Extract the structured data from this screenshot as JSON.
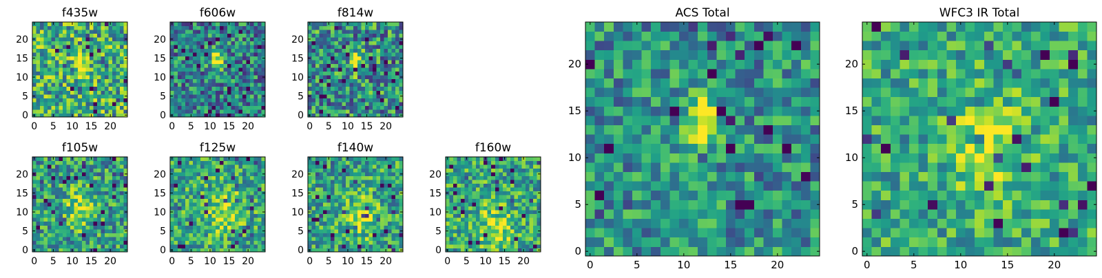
{
  "chart_data": [
    {
      "type": "heatmap",
      "title": "f435w",
      "xlabel": "",
      "ylabel": "",
      "xlim": [
        0,
        25
      ],
      "ylim": [
        0,
        25
      ],
      "xticks": [
        0,
        5,
        10,
        15,
        20
      ],
      "xtick_labels": [
        "0",
        "5",
        "10",
        "15",
        "20"
      ],
      "yticks": [
        0,
        5,
        10,
        15,
        20
      ],
      "ytick_labels": [
        "0",
        "5",
        "10",
        "15",
        "20"
      ],
      "colormap": "viridis",
      "source_center": [
        12,
        14
      ],
      "source_size": [
        1.2,
        2.2
      ],
      "source_strength": 0.45,
      "noise_level": 0.35,
      "base_level": 0.62,
      "seed": 435
    },
    {
      "type": "heatmap",
      "title": "f606w",
      "xlabel": "",
      "ylabel": "",
      "xlim": [
        0,
        25
      ],
      "ylim": [
        0,
        25
      ],
      "xticks": [
        0,
        5,
        10,
        15,
        20
      ],
      "xtick_labels": [
        "0",
        "5",
        "10",
        "15",
        "20"
      ],
      "yticks": [
        0,
        5,
        10,
        15,
        20
      ],
      "ytick_labels": [
        "0",
        "5",
        "10",
        "15",
        "20"
      ],
      "colormap": "viridis",
      "source_center": [
        12,
        14
      ],
      "source_size": [
        1.2,
        1.8
      ],
      "source_strength": 0.65,
      "noise_level": 0.32,
      "base_level": 0.45,
      "seed": 606
    },
    {
      "type": "heatmap",
      "title": "f814w",
      "xlabel": "",
      "ylabel": "",
      "xlim": [
        0,
        25
      ],
      "ylim": [
        0,
        25
      ],
      "xticks": [
        0,
        5,
        10,
        15,
        20
      ],
      "xtick_labels": [
        "0",
        "5",
        "10",
        "15",
        "20"
      ],
      "yticks": [
        0,
        5,
        10,
        15,
        20
      ],
      "ytick_labels": [
        "0",
        "5",
        "10",
        "15",
        "20"
      ],
      "colormap": "viridis",
      "source_center": [
        12,
        14
      ],
      "source_size": [
        1.2,
        2.0
      ],
      "source_strength": 0.5,
      "noise_level": 0.35,
      "base_level": 0.5,
      "seed": 814
    },
    {
      "type": "heatmap",
      "title": "f105w",
      "xlabel": "",
      "ylabel": "",
      "xlim": [
        0,
        25
      ],
      "ylim": [
        0,
        25
      ],
      "xticks": [
        0,
        5,
        10,
        15,
        20
      ],
      "xtick_labels": [
        "0",
        "5",
        "10",
        "15",
        "20"
      ],
      "yticks": [
        0,
        5,
        10,
        15,
        20
      ],
      "ytick_labels": [
        "0",
        "5",
        "10",
        "15",
        "20"
      ],
      "colormap": "viridis",
      "source_center": [
        12,
        11
      ],
      "source_size": [
        2.5,
        3.5
      ],
      "source_strength": 0.35,
      "noise_level": 0.3,
      "base_level": 0.55,
      "seed": 105
    },
    {
      "type": "heatmap",
      "title": "f125w",
      "xlabel": "",
      "ylabel": "",
      "xlim": [
        0,
        25
      ],
      "ylim": [
        0,
        25
      ],
      "xticks": [
        0,
        5,
        10,
        15,
        20
      ],
      "xtick_labels": [
        "0",
        "5",
        "10",
        "15",
        "20"
      ],
      "yticks": [
        0,
        5,
        10,
        15,
        20
      ],
      "ytick_labels": [
        "0",
        "5",
        "10",
        "15",
        "20"
      ],
      "colormap": "viridis",
      "source_center": [
        14,
        10
      ],
      "source_size": [
        3,
        4
      ],
      "source_strength": 0.3,
      "noise_level": 0.28,
      "base_level": 0.6,
      "seed": 125
    },
    {
      "type": "heatmap",
      "title": "f140w",
      "xlabel": "",
      "ylabel": "",
      "xlim": [
        0,
        25
      ],
      "ylim": [
        0,
        25
      ],
      "xticks": [
        0,
        5,
        10,
        15,
        20
      ],
      "xtick_labels": [
        "0",
        "5",
        "10",
        "15",
        "20"
      ],
      "yticks": [
        0,
        5,
        10,
        15,
        20
      ],
      "ytick_labels": [
        "0",
        "5",
        "10",
        "15",
        "20"
      ],
      "colormap": "viridis",
      "source_center": [
        14,
        9
      ],
      "source_size": [
        3,
        4
      ],
      "source_strength": 0.3,
      "noise_level": 0.28,
      "base_level": 0.58,
      "seed": 140
    },
    {
      "type": "heatmap",
      "title": "f160w",
      "xlabel": "",
      "ylabel": "",
      "xlim": [
        0,
        25
      ],
      "ylim": [
        0,
        25
      ],
      "xticks": [
        0,
        5,
        10,
        15,
        20
      ],
      "xtick_labels": [
        "0",
        "5",
        "10",
        "15",
        "20"
      ],
      "yticks": [
        0,
        5,
        10,
        15,
        20
      ],
      "ytick_labels": [
        "0",
        "5",
        "10",
        "15",
        "20"
      ],
      "colormap": "viridis",
      "source_center": [
        13,
        6
      ],
      "source_size": [
        3.5,
        4
      ],
      "source_strength": 0.3,
      "noise_level": 0.28,
      "base_level": 0.6,
      "seed": 160
    },
    {
      "type": "heatmap",
      "title": "ACS Total",
      "xlabel": "",
      "ylabel": "",
      "xlim": [
        0,
        25
      ],
      "ylim": [
        0,
        25
      ],
      "xticks": [
        0,
        5,
        10,
        15,
        20
      ],
      "xtick_labels": [
        "0",
        "5",
        "10",
        "15",
        "20"
      ],
      "yticks": [
        0,
        5,
        10,
        15,
        20
      ],
      "ytick_labels": [
        "0",
        "5",
        "10",
        "15",
        "20"
      ],
      "colormap": "viridis",
      "source_center": [
        12,
        14
      ],
      "source_size": [
        1.3,
        2.2
      ],
      "source_strength": 0.6,
      "noise_level": 0.28,
      "base_level": 0.5,
      "seed": 999
    },
    {
      "type": "heatmap",
      "title": "WFC3 IR Total",
      "xlabel": "",
      "ylabel": "",
      "xlim": [
        0,
        25
      ],
      "ylim": [
        0,
        25
      ],
      "xticks": [
        0,
        5,
        10,
        15,
        20
      ],
      "xtick_labels": [
        "0",
        "5",
        "10",
        "15",
        "20"
      ],
      "yticks": [
        0,
        5,
        10,
        15,
        20
      ],
      "ytick_labels": [
        "0",
        "5",
        "10",
        "15",
        "20"
      ],
      "colormap": "viridis",
      "source_center": [
        13,
        11
      ],
      "source_size": [
        2.5,
        4
      ],
      "source_strength": 0.35,
      "noise_level": 0.25,
      "base_level": 0.6,
      "seed": 777
    }
  ]
}
